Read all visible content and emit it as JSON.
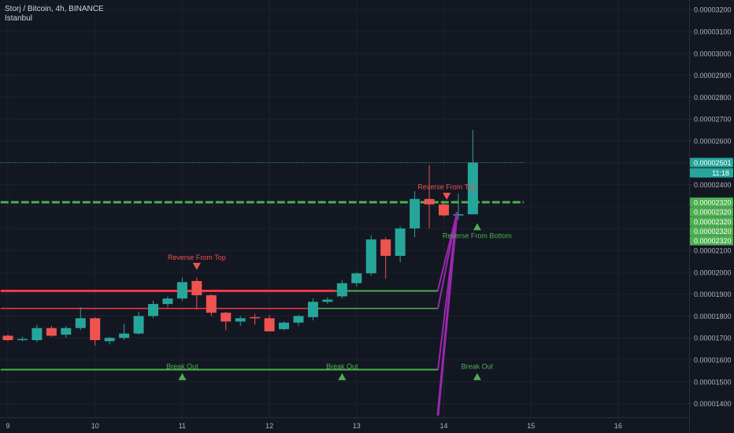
{
  "header": {
    "title": "Storj / Bitcoin, 4h, BINANCE",
    "timezone": "Istanbul"
  },
  "colors": {
    "background": "#131722",
    "bull": "#26a69a",
    "bear": "#ef5350",
    "green_line": "#4caf50",
    "red_line": "#f23645",
    "purple": "#9c27b0",
    "grid": "#1e222d",
    "axis_text": "#b2b5be"
  },
  "chart_data": {
    "type": "candlestick",
    "symbol": "STORJ/BTC",
    "interval": "4h",
    "exchange": "BINANCE",
    "x_ticks": [
      {
        "label": "9",
        "t": 0
      },
      {
        "label": "10",
        "t": 6
      },
      {
        "label": "11",
        "t": 12
      },
      {
        "label": "12",
        "t": 18
      },
      {
        "label": "13",
        "t": 24
      },
      {
        "label": "14",
        "t": 30
      },
      {
        "label": "15",
        "t": 36
      },
      {
        "label": "16",
        "t": 42
      }
    ],
    "y_ticks": [
      "0.00001400",
      "0.00001500",
      "0.00001600",
      "0.00001700",
      "0.00001800",
      "0.00001900",
      "0.00002000",
      "0.00002100",
      "0.00002200",
      "0.00002300",
      "0.00002400",
      "0.00002500",
      "0.00002600",
      "0.00002700",
      "0.00002800",
      "0.00002900",
      "0.00003000",
      "0.00003100",
      "0.00003200"
    ],
    "y_range": [
      1.335e-05,
      3.226e-05
    ],
    "candles": [
      {
        "t": 0,
        "o": 1.71e-05,
        "h": 1.715e-05,
        "l": 1.685e-05,
        "c": 1.69e-05
      },
      {
        "t": 1,
        "o": 1.69e-05,
        "h": 1.705e-05,
        "l": 1.685e-05,
        "c": 1.695e-05
      },
      {
        "t": 2,
        "o": 1.69e-05,
        "h": 1.76e-05,
        "l": 1.68e-05,
        "c": 1.745e-05
      },
      {
        "t": 3,
        "o": 1.745e-05,
        "h": 1.755e-05,
        "l": 1.705e-05,
        "c": 1.71e-05
      },
      {
        "t": 4,
        "o": 1.715e-05,
        "h": 1.755e-05,
        "l": 1.7e-05,
        "c": 1.745e-05
      },
      {
        "t": 5,
        "o": 1.745e-05,
        "h": 1.84e-05,
        "l": 1.735e-05,
        "c": 1.79e-05
      },
      {
        "t": 6,
        "o": 1.79e-05,
        "h": 1.795e-05,
        "l": 1.665e-05,
        "c": 1.69e-05
      },
      {
        "t": 7,
        "o": 1.685e-05,
        "h": 1.705e-05,
        "l": 1.67e-05,
        "c": 1.7e-05
      },
      {
        "t": 8,
        "o": 1.7e-05,
        "h": 1.765e-05,
        "l": 1.69e-05,
        "c": 1.72e-05
      },
      {
        "t": 9,
        "o": 1.72e-05,
        "h": 1.82e-05,
        "l": 1.715e-05,
        "c": 1.8e-05
      },
      {
        "t": 10,
        "o": 1.8e-05,
        "h": 1.87e-05,
        "l": 1.79e-05,
        "c": 1.855e-05
      },
      {
        "t": 11,
        "o": 1.855e-05,
        "h": 1.89e-05,
        "l": 1.84e-05,
        "c": 1.88e-05
      },
      {
        "t": 12,
        "o": 1.88e-05,
        "h": 1.975e-05,
        "l": 1.87e-05,
        "c": 1.955e-05
      },
      {
        "t": 13,
        "o": 1.96e-05,
        "h": 1.975e-05,
        "l": 1.83e-05,
        "c": 1.895e-05
      },
      {
        "t": 14,
        "o": 1.895e-05,
        "h": 1.9e-05,
        "l": 1.8e-05,
        "c": 1.815e-05
      },
      {
        "t": 15,
        "o": 1.815e-05,
        "h": 1.82e-05,
        "l": 1.735e-05,
        "c": 1.775e-05
      },
      {
        "t": 16,
        "o": 1.775e-05,
        "h": 1.8e-05,
        "l": 1.755e-05,
        "c": 1.79e-05
      },
      {
        "t": 17,
        "o": 1.795e-05,
        "h": 1.81e-05,
        "l": 1.76e-05,
        "c": 1.79e-05
      },
      {
        "t": 18,
        "o": 1.79e-05,
        "h": 1.805e-05,
        "l": 1.73e-05,
        "c": 1.73e-05
      },
      {
        "t": 19,
        "o": 1.74e-05,
        "h": 1.775e-05,
        "l": 1.735e-05,
        "c": 1.77e-05
      },
      {
        "t": 20,
        "o": 1.77e-05,
        "h": 1.805e-05,
        "l": 1.755e-05,
        "c": 1.8e-05
      },
      {
        "t": 21,
        "o": 1.795e-05,
        "h": 1.88e-05,
        "l": 1.78e-05,
        "c": 1.865e-05
      },
      {
        "t": 22,
        "o": 1.865e-05,
        "h": 1.885e-05,
        "l": 1.855e-05,
        "c": 1.875e-05
      },
      {
        "t": 23,
        "o": 1.89e-05,
        "h": 1.965e-05,
        "l": 1.88e-05,
        "c": 1.95e-05
      },
      {
        "t": 24,
        "o": 1.95e-05,
        "h": 2e-05,
        "l": 1.935e-05,
        "c": 1.995e-05
      },
      {
        "t": 25,
        "o": 1.995e-05,
        "h": 2.17e-05,
        "l": 1.985e-05,
        "c": 2.15e-05
      },
      {
        "t": 26,
        "o": 2.15e-05,
        "h": 2.16e-05,
        "l": 1.97e-05,
        "c": 2.075e-05
      },
      {
        "t": 27,
        "o": 2.075e-05,
        "h": 2.21e-05,
        "l": 2.045e-05,
        "c": 2.2e-05
      },
      {
        "t": 28,
        "o": 2.2e-05,
        "h": 2.37e-05,
        "l": 2.16e-05,
        "c": 2.335e-05
      },
      {
        "t": 29,
        "o": 2.335e-05,
        "h": 2.49e-05,
        "l": 2.2e-05,
        "c": 2.31e-05
      },
      {
        "t": 30,
        "o": 2.31e-05,
        "h": 2.32e-05,
        "l": 2.255e-05,
        "c": 2.26e-05
      },
      {
        "t": 31,
        "o": 2.26e-05,
        "h": 2.36e-05,
        "l": 2.24e-05,
        "c": 2.265e-05
      },
      {
        "t": 32,
        "o": 2.265e-05,
        "h": 2.65e-05,
        "l": 2.265e-05,
        "c": 2.501e-05
      }
    ],
    "price_labels": [
      {
        "text": "0.00002501",
        "value": 2.501e-05,
        "kind": "last"
      },
      {
        "text": "11:18",
        "value": 2.501e-05,
        "kind": "countdown"
      },
      {
        "text": "0.00002320",
        "value": 2.32e-05,
        "kind": "level",
        "stack": 0
      },
      {
        "text": "0.00002320",
        "value": 2.32e-05,
        "kind": "level",
        "stack": 1
      },
      {
        "text": "0.00002320",
        "value": 2.32e-05,
        "kind": "level",
        "stack": 2
      },
      {
        "text": "0.00002320",
        "value": 2.32e-05,
        "kind": "level",
        "stack": 3
      },
      {
        "text": "0.00002320",
        "value": 2.32e-05,
        "kind": "level",
        "stack": 4
      }
    ],
    "horizontal_lines": [
      {
        "value": 2.501e-05,
        "t1": -0.5,
        "t2": 35.5,
        "color": "#26a69a",
        "style": "dotted",
        "width": 1
      },
      {
        "value": 2.32e-05,
        "t1": -0.5,
        "t2": 35.5,
        "color": "#4caf50",
        "style": "dashed",
        "width": 3
      },
      {
        "value": 1.915e-05,
        "t1": -0.5,
        "t2": 22.5,
        "color": "#f23645",
        "style": "solid",
        "width": 3
      },
      {
        "value": 1.915e-05,
        "t1": 22.5,
        "t2": 29.6,
        "color": "#4caf50",
        "style": "solid",
        "width": 2
      },
      {
        "value": 1.835e-05,
        "t1": -0.5,
        "t2": 21.0,
        "color": "#f23645",
        "style": "solid",
        "width": 1.5
      },
      {
        "value": 1.835e-05,
        "t1": 21.0,
        "t2": 29.6,
        "color": "#4caf50",
        "style": "solid",
        "width": 1.5
      },
      {
        "value": 1.555e-05,
        "t1": -0.5,
        "t2": 29.6,
        "color": "#4caf50",
        "style": "solid",
        "width": 2
      }
    ],
    "diagonal_lines": [
      {
        "t1": 29.6,
        "v1": 1.92e-05,
        "t2": 30.9,
        "v2": 2.27e-05,
        "color": "#9c27b0",
        "width": 2
      },
      {
        "t1": 29.6,
        "v1": 1.835e-05,
        "t2": 30.9,
        "v2": 2.27e-05,
        "color": "#9c27b0",
        "width": 2
      },
      {
        "t1": 29.6,
        "v1": 1.555e-05,
        "t2": 30.9,
        "v2": 2.27e-05,
        "color": "#9c27b0",
        "width": 2
      },
      {
        "t1": 29.6,
        "v1": 1.35e-05,
        "t2": 30.9,
        "v2": 2.27e-05,
        "color": "#9c27b0",
        "width": 3
      }
    ],
    "annotations": [
      {
        "text": "Reverse From Top",
        "t": 13.0,
        "value": 2.068e-05,
        "color": "#ef5350",
        "marker": "down",
        "marker_value": 2.025e-05
      },
      {
        "text": "Reverse From Top",
        "t": 30.2,
        "value": 2.39e-05,
        "color": "#ef5350",
        "marker": "down",
        "marker_value": 2.345e-05
      },
      {
        "text": "Reverse From Bottom",
        "t": 32.3,
        "value": 2.167e-05,
        "color": "#4caf50",
        "marker": "up",
        "marker_value": 2.21e-05
      },
      {
        "text": "Break Out",
        "t": 12.0,
        "value": 1.57e-05,
        "color": "#4caf50",
        "marker": "up",
        "marker_value": 1.525e-05
      },
      {
        "text": "Break Out",
        "t": 23.0,
        "value": 1.57e-05,
        "color": "#4caf50",
        "marker": "up",
        "marker_value": 1.525e-05
      },
      {
        "text": "Break Out",
        "t": 32.3,
        "value": 1.57e-05,
        "color": "#4caf50",
        "marker": "up",
        "marker_value": 1.525e-05
      }
    ]
  }
}
